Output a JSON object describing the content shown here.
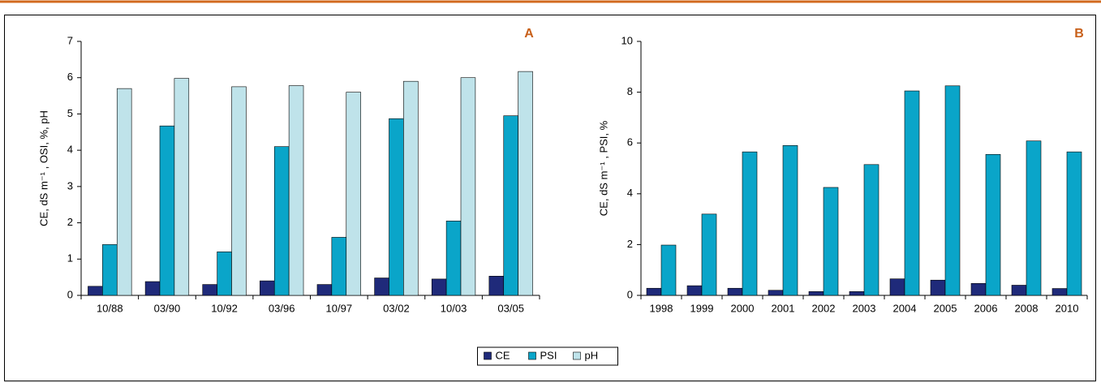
{
  "chart_data": [
    {
      "type": "bar",
      "label": "A",
      "y_label": "CE, dS m⁻¹ , OSI, %, pH",
      "categories": [
        "10/88",
        "03/90",
        "10/92",
        "03/96",
        "10/97",
        "03/02",
        "10/03",
        "03/05"
      ],
      "series": [
        {
          "name": "CE",
          "color": "#1f2a7a",
          "values": [
            0.25,
            0.38,
            0.3,
            0.4,
            0.3,
            0.48,
            0.45,
            0.53
          ]
        },
        {
          "name": "PSI",
          "color": "#0aa5c9",
          "values": [
            1.4,
            4.67,
            1.2,
            4.1,
            1.6,
            4.87,
            2.05,
            4.95
          ]
        },
        {
          "name": "pH",
          "color": "#bfe3ea",
          "values": [
            5.7,
            5.98,
            5.75,
            5.78,
            5.6,
            5.9,
            6.0,
            6.17
          ]
        }
      ],
      "ylim": [
        0,
        7
      ],
      "yticks": [
        0,
        1,
        2,
        3,
        4,
        5,
        6,
        7
      ]
    },
    {
      "type": "bar",
      "label": "B",
      "y_label": "CE, dS m⁻¹ , PSI, %",
      "categories": [
        "1998",
        "1999",
        "2000",
        "2001",
        "2002",
        "2003",
        "2004",
        "2005",
        "2006",
        "2008",
        "2010"
      ],
      "series": [
        {
          "color": "#1f2a7a",
          "values": [
            0.28,
            0.38,
            0.28,
            0.2,
            0.15,
            0.15,
            0.65,
            0.6,
            0.47,
            0.4,
            0.27
          ]
        },
        {
          "color": "#0aa5c9",
          "values": [
            1.98,
            3.2,
            5.65,
            5.9,
            4.25,
            5.15,
            8.05,
            8.25,
            5.55,
            6.08,
            5.65
          ]
        }
      ],
      "ylim": [
        0,
        10
      ],
      "yticks": [
        0,
        2,
        4,
        6,
        8,
        10
      ]
    }
  ]
}
